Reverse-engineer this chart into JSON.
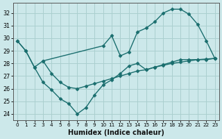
{
  "xlabel": "Humidex (Indice chaleur)",
  "bg_color": "#cce8ea",
  "grid_color": "#aacfcf",
  "line_color": "#1a6e6e",
  "xlim": [
    -0.5,
    23.5
  ],
  "ylim": [
    23.5,
    32.8
  ],
  "xticks": [
    0,
    1,
    2,
    3,
    4,
    5,
    6,
    7,
    8,
    9,
    10,
    11,
    12,
    13,
    14,
    15,
    16,
    17,
    18,
    19,
    20,
    21,
    22,
    23
  ],
  "yticks": [
    24,
    25,
    26,
    27,
    28,
    29,
    30,
    31,
    32
  ],
  "line1_x": [
    0,
    1,
    2,
    3,
    10,
    11,
    12,
    13,
    14,
    15,
    16,
    17,
    18,
    19,
    20,
    21,
    22,
    23
  ],
  "line1_y": [
    29.8,
    29.0,
    27.7,
    28.2,
    29.4,
    30.2,
    28.6,
    28.9,
    30.5,
    30.8,
    31.3,
    32.0,
    32.3,
    32.3,
    31.9,
    31.1,
    29.8,
    28.4
  ],
  "line2_x": [
    0,
    1,
    2,
    3,
    4,
    5,
    6,
    7,
    8,
    9,
    10,
    11,
    12,
    13,
    14,
    15,
    16,
    17,
    18,
    19,
    20,
    21,
    22,
    23
  ],
  "line2_y": [
    29.8,
    29.0,
    27.7,
    26.5,
    25.9,
    25.2,
    24.8,
    24.0,
    24.5,
    25.5,
    26.3,
    26.7,
    27.2,
    27.8,
    28.0,
    27.5,
    27.7,
    27.9,
    28.1,
    28.3,
    28.3,
    28.3,
    28.3,
    28.4
  ],
  "line3_x": [
    3,
    4,
    5,
    6,
    7,
    8,
    9,
    10,
    11,
    12,
    13,
    14,
    15,
    16,
    17,
    18,
    19,
    20,
    21,
    22,
    23
  ],
  "line3_y": [
    28.2,
    27.2,
    26.5,
    26.1,
    26.0,
    26.2,
    26.4,
    26.6,
    26.8,
    27.0,
    27.2,
    27.4,
    27.5,
    27.7,
    27.85,
    28.0,
    28.1,
    28.2,
    28.3,
    28.35,
    28.4
  ],
  "marker": "D",
  "marker_size": 2.5,
  "line_width": 1.0
}
